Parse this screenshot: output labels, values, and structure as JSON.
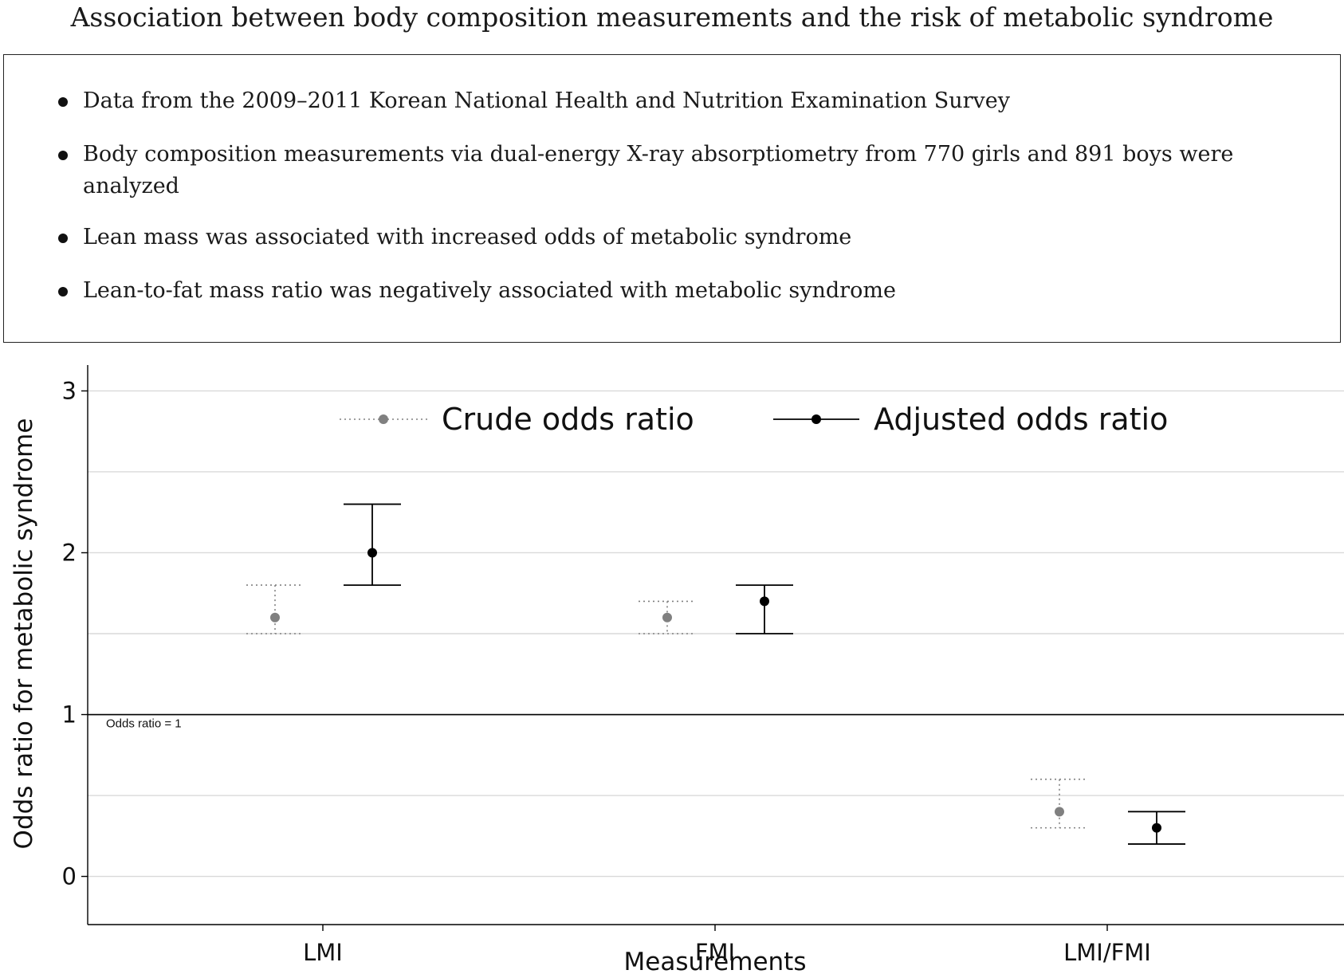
{
  "title": "Association between body composition measurements and the risk of metabolic syndrome",
  "summary": [
    "Data from the 2009–2011 Korean National Health and Nutrition Examination Survey",
    "Body composition measurements via dual-energy X-ray absorptiometry from 770 girls and 891 boys were analyzed",
    "Lean mass was associated with increased odds of metabolic syndrome",
    "Lean-to-fat mass ratio was negatively associated with metabolic syndrome"
  ],
  "chart_data": {
    "type": "scatter",
    "subtype": "point-range",
    "categories": [
      "LMI",
      "FMI",
      "LMI/FMI"
    ],
    "xlabel": "Measurements",
    "ylabel": "Odds ratio for metabolic syndrome",
    "ylim": [
      -0.15,
      3.15
    ],
    "yticks": [
      0,
      1,
      2,
      3
    ],
    "grid": true,
    "legend_position": "top",
    "reference_line": {
      "y": 1,
      "label": "Odds ratio = 1"
    },
    "series": [
      {
        "name": "Crude odds ratio",
        "color": "#808080",
        "style": "dotted",
        "points": [
          {
            "category": "LMI",
            "estimate": 1.6,
            "lower": 1.5,
            "upper": 1.8
          },
          {
            "category": "FMI",
            "estimate": 1.6,
            "lower": 1.5,
            "upper": 1.7
          },
          {
            "category": "LMI/FMI",
            "estimate": 0.4,
            "lower": 0.3,
            "upper": 0.6
          }
        ]
      },
      {
        "name": "Adjusted odds ratio",
        "color": "#000000",
        "style": "solid",
        "points": [
          {
            "category": "LMI",
            "estimate": 2.0,
            "lower": 1.8,
            "upper": 2.3
          },
          {
            "category": "FMI",
            "estimate": 1.7,
            "lower": 1.5,
            "upper": 1.8
          },
          {
            "category": "LMI/FMI",
            "estimate": 0.3,
            "lower": 0.2,
            "upper": 0.4
          }
        ]
      }
    ]
  }
}
